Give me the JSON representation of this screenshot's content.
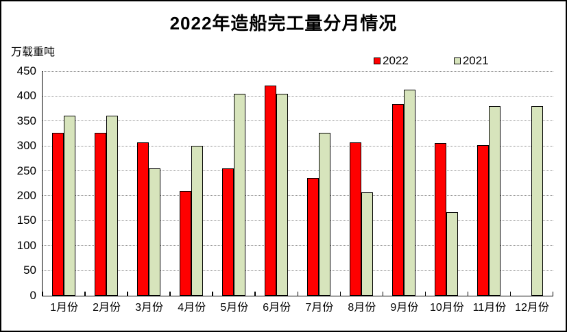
{
  "chart_data": {
    "type": "bar",
    "title": "2022年造船完工量分月情况",
    "ylabel": "万载重吨",
    "xlabel": "",
    "categories": [
      "1月份",
      "2月份",
      "3月份",
      "4月份",
      "5月份",
      "6月份",
      "7月份",
      "8月份",
      "9月份",
      "10月份",
      "11月份",
      "12月份"
    ],
    "series": [
      {
        "name": "2022",
        "color": "#FF0000",
        "values": [
          327,
          327,
          308,
          210,
          256,
          422,
          236,
          308,
          385,
          306,
          302,
          null
        ]
      },
      {
        "name": "2021",
        "color": "#D7E4BC",
        "values": [
          362,
          362,
          255,
          301,
          406,
          406,
          327,
          208,
          413,
          167,
          381,
          381
        ]
      }
    ],
    "ylim": [
      0,
      450
    ],
    "ytick_step": 50,
    "grid": "horizontal-dotted",
    "legend_position": "top-right",
    "colors": {
      "axis": "#000000",
      "gridline": "#8c8c8c",
      "bar_border": "#000000",
      "frame_border": "#000000",
      "background": "#FFFFFF",
      "series_2022": "#FF0000",
      "series_2021": "#D7E4BC"
    }
  }
}
